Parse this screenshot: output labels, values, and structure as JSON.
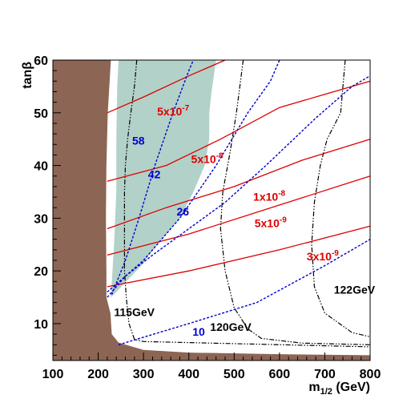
{
  "chart_data": {
    "type": "line",
    "xlabel_main": "m",
    "xlabel_sub": "1/2",
    "xlabel_unit": " (GeV)",
    "ylabel": "tanβ",
    "xlim": [
      100,
      800
    ],
    "ylim": [
      3,
      60
    ],
    "x_ticks": [
      100,
      200,
      300,
      400,
      500,
      600,
      700,
      800
    ],
    "y_ticks": [
      10,
      20,
      30,
      40,
      50,
      60
    ],
    "grid": false,
    "colors": {
      "excluded_region": "#8c6554",
      "cosmology_region": "#b2d1c8",
      "higgs_mass": "#000000",
      "bs_mumu": "#dd0000",
      "tanbeta_lines": "#0000cc"
    },
    "regions": [
      {
        "name": "brown-excluded",
        "points": [
          [
            100,
            3
          ],
          [
            100,
            60
          ],
          [
            228,
            60
          ],
          [
            221,
            50
          ],
          [
            218,
            40
          ],
          [
            217,
            30
          ],
          [
            218,
            20
          ],
          [
            218,
            15
          ],
          [
            227,
            12
          ],
          [
            230,
            8
          ],
          [
            245,
            6.4
          ],
          [
            300,
            5
          ],
          [
            400,
            4.5
          ],
          [
            600,
            4.2
          ],
          [
            800,
            4.0
          ],
          [
            800,
            3
          ]
        ]
      },
      {
        "name": "green-cosmology",
        "points": [
          [
            245,
            60
          ],
          [
            460,
            60
          ],
          [
            450,
            54
          ],
          [
            445,
            50
          ],
          [
            445,
            45
          ],
          [
            435,
            40
          ],
          [
            410,
            35
          ],
          [
            380,
            30
          ],
          [
            330,
            25
          ],
          [
            295,
            21
          ],
          [
            262,
            18
          ],
          [
            240,
            16
          ],
          [
            228,
            15
          ],
          [
            235,
            25
          ],
          [
            240,
            35
          ],
          [
            240,
            45
          ],
          [
            242,
            55
          ]
        ]
      }
    ],
    "series": [
      {
        "name": "115GeV",
        "kind": "higgs",
        "points": [
          [
            285,
            60
          ],
          [
            280,
            55
          ],
          [
            272,
            50
          ],
          [
            265,
            45
          ],
          [
            260,
            40
          ],
          [
            258,
            35
          ],
          [
            258,
            30
          ],
          [
            258,
            25
          ],
          [
            258,
            20
          ],
          [
            262,
            15
          ],
          [
            268,
            10
          ],
          [
            280,
            7
          ],
          [
            300,
            6.6
          ],
          [
            800,
            5.6
          ]
        ]
      },
      {
        "name": "120GeV",
        "kind": "higgs",
        "points": [
          [
            520,
            60
          ],
          [
            505,
            50
          ],
          [
            490,
            42
          ],
          [
            475,
            35
          ],
          [
            470,
            28
          ],
          [
            480,
            20
          ],
          [
            500,
            13
          ],
          [
            530,
            9
          ],
          [
            560,
            7.2
          ],
          [
            650,
            6.3
          ],
          [
            800,
            6.0
          ]
        ]
      },
      {
        "name": "122GeV",
        "kind": "higgs",
        "points": [
          [
            745,
            60
          ],
          [
            735,
            50
          ],
          [
            705,
            45
          ],
          [
            690,
            40
          ],
          [
            677,
            33
          ],
          [
            671,
            25
          ],
          [
            677,
            17
          ],
          [
            700,
            12
          ],
          [
            760,
            8.3
          ],
          [
            800,
            7.5
          ]
        ]
      },
      {
        "name": "5x10-7",
        "kind": "bsmumu",
        "points": [
          [
            220,
            50
          ],
          [
            300,
            53
          ],
          [
            400,
            57
          ],
          [
            480,
            60
          ]
        ]
      },
      {
        "name": "5x10-8",
        "kind": "bsmumu",
        "points": [
          [
            220,
            37
          ],
          [
            350,
            40
          ],
          [
            470,
            45
          ],
          [
            600,
            51
          ],
          [
            700,
            53.5
          ],
          [
            800,
            56
          ]
        ]
      },
      {
        "name": "1x10-8",
        "kind": "bsmumu",
        "points": [
          [
            220,
            28
          ],
          [
            350,
            32
          ],
          [
            500,
            36
          ],
          [
            650,
            41
          ],
          [
            800,
            45
          ]
        ]
      },
      {
        "name": "5x10-9",
        "kind": "bsmumu",
        "points": [
          [
            220,
            23
          ],
          [
            400,
            27
          ],
          [
            600,
            32.5
          ],
          [
            800,
            38
          ]
        ]
      },
      {
        "name": "3x10-9",
        "kind": "bsmumu",
        "points": [
          [
            220,
            17
          ],
          [
            400,
            20
          ],
          [
            600,
            24
          ],
          [
            800,
            28.5
          ]
        ]
      },
      {
        "name": "58",
        "kind": "tanb",
        "points": [
          [
            230,
            15.5
          ],
          [
            260,
            22
          ],
          [
            290,
            30
          ],
          [
            325,
            40
          ],
          [
            365,
            50
          ],
          [
            400,
            58
          ],
          [
            410,
            60
          ]
        ]
      },
      {
        "name": "42",
        "kind": "tanb",
        "points": [
          [
            220,
            16
          ],
          [
            300,
            22
          ],
          [
            380,
            30
          ],
          [
            460,
            40
          ],
          [
            530,
            50
          ],
          [
            580,
            56
          ],
          [
            600,
            60
          ]
        ]
      },
      {
        "name": "26",
        "kind": "tanb",
        "points": [
          [
            220,
            15
          ],
          [
            260,
            19
          ],
          [
            320,
            23
          ],
          [
            400,
            28
          ],
          [
            480,
            33
          ],
          [
            570,
            40
          ],
          [
            680,
            49
          ],
          [
            760,
            55
          ],
          [
            800,
            57
          ]
        ]
      },
      {
        "name": "10",
        "kind": "tanb",
        "points": [
          [
            245,
            6
          ],
          [
            400,
            10
          ],
          [
            550,
            14
          ],
          [
            700,
            21
          ],
          [
            800,
            26
          ]
        ]
      }
    ],
    "annotations": [
      {
        "text": "5x10",
        "sup": "-7",
        "color": "#dd0000",
        "at": [
          330,
          49.5
        ]
      },
      {
        "text": "5x10",
        "sup": "-8",
        "color": "#dd0000",
        "at": [
          405,
          40.5
        ]
      },
      {
        "text": "1x10",
        "sup": "-8",
        "color": "#dd0000",
        "at": [
          542,
          33.3
        ]
      },
      {
        "text": "5x10",
        "sup": "-9",
        "color": "#dd0000",
        "at": [
          545,
          28.3
        ]
      },
      {
        "text": "3x10",
        "sup": "-9",
        "color": "#dd0000",
        "at": [
          660,
          22.0
        ]
      },
      {
        "text": "58",
        "sup": "",
        "color": "#0000cc",
        "at": [
          275,
          44.0
        ]
      },
      {
        "text": "42",
        "sup": "",
        "color": "#0000cc",
        "at": [
          310,
          37.6
        ]
      },
      {
        "text": "26",
        "sup": "",
        "color": "#0000cc",
        "at": [
          373,
          30.5
        ]
      },
      {
        "text": "10",
        "sup": "",
        "color": "#0000cc",
        "at": [
          408,
          7.7
        ]
      },
      {
        "text": "115GeV",
        "sup": "",
        "color": "#000000",
        "at": [
          235,
          11.4
        ]
      },
      {
        "text": "120GeV",
        "sup": "",
        "color": "#000000",
        "at": [
          447,
          8.6
        ]
      },
      {
        "text": "122GeV",
        "sup": "",
        "color": "#000000",
        "at": [
          720,
          15.7
        ]
      }
    ]
  }
}
